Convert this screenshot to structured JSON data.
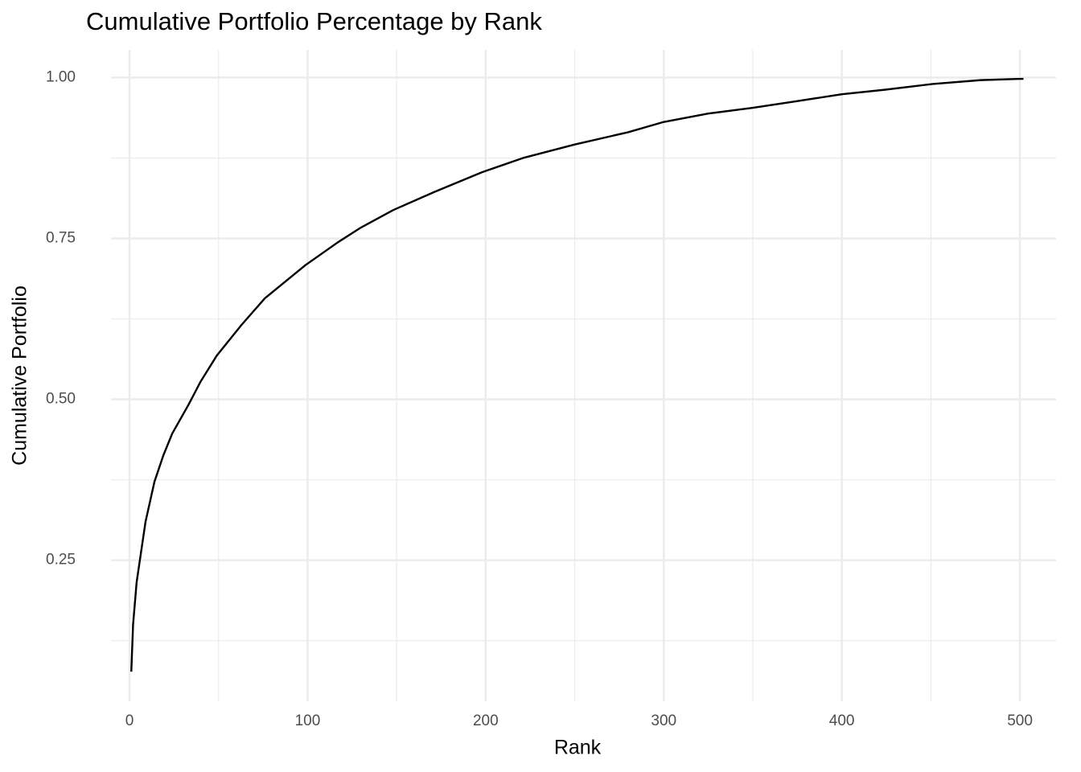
{
  "chart_data": {
    "type": "line",
    "title": "Cumulative Portfolio Percentage by Rank",
    "x_label": "Rank",
    "y_label": "Cumulative Portfolio",
    "x": [
      1,
      2,
      4,
      9,
      14,
      19,
      24,
      33,
      40,
      49,
      63,
      76,
      99,
      117,
      130,
      148,
      171,
      198,
      221,
      250,
      280,
      300,
      325,
      350,
      374,
      400,
      424,
      451,
      478,
      500,
      502
    ],
    "series": [
      {
        "name": "Cumulative Portfolio",
        "color": "#000000",
        "values": [
          0.077,
          0.15,
          0.216,
          0.31,
          0.372,
          0.413,
          0.447,
          0.491,
          0.528,
          0.568,
          0.616,
          0.657,
          0.709,
          0.744,
          0.767,
          0.794,
          0.822,
          0.853,
          0.875,
          0.896,
          0.915,
          0.931,
          0.944,
          0.953,
          0.963,
          0.974,
          0.981,
          0.99,
          0.996,
          0.998,
          0.998
        ]
      }
    ],
    "xlim": [
      -10.4,
      520.3
    ],
    "ylim": [
      0.031,
      1.043
    ],
    "xticks": [
      0,
      100,
      200,
      300,
      400,
      500
    ],
    "yticks": [
      {
        "value": 0.25,
        "label": "0.25"
      },
      {
        "value": 0.5,
        "label": "0.50"
      },
      {
        "value": 0.75,
        "label": "0.75"
      },
      {
        "value": 1,
        "label": "1.00"
      }
    ],
    "grid": true,
    "minor_grid": true
  }
}
